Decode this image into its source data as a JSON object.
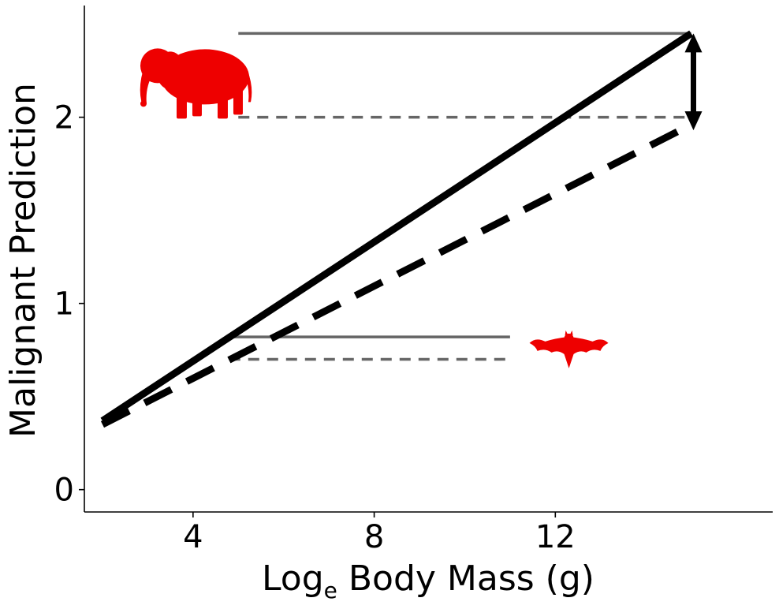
{
  "chart_data": {
    "type": "line",
    "xlabel_main": "Log",
    "xlabel_subscript": "e",
    "xlabel_rest": " Body Mass (g)",
    "ylabel": "Malignant Prediction",
    "xlim": [
      1.6,
      16.8
    ],
    "ylim": [
      -0.12,
      2.6
    ],
    "x_ticks": [
      4,
      8,
      12
    ],
    "y_ticks": [
      0,
      1,
      2
    ],
    "grid": false,
    "series": [
      {
        "style": "solid",
        "color": "#000000",
        "x": [
          2,
          15
        ],
        "y": [
          0.37,
          2.45
        ]
      },
      {
        "style": "dashed",
        "color": "#000000",
        "x": [
          2,
          15
        ],
        "y": [
          0.35,
          1.96
        ]
      }
    ],
    "reference_lines": [
      {
        "style": "solid",
        "color": "#666666",
        "x": [
          5,
          15
        ],
        "y": 2.45
      },
      {
        "style": "dashed",
        "color": "#666666",
        "x": [
          5,
          15
        ],
        "y": 2.0
      },
      {
        "style": "solid",
        "color": "#666666",
        "x": [
          4.8,
          11
        ],
        "y": 0.82
      },
      {
        "style": "dashed",
        "color": "#666666",
        "x": [
          4.8,
          11
        ],
        "y": 0.7
      }
    ],
    "double_arrow": {
      "x": 15.05,
      "y": [
        2.45,
        1.93
      ],
      "color": "#000000"
    },
    "annotations": [
      {
        "icon": "elephant-icon",
        "x": 3.95,
        "y": 2.2,
        "color": "#ee0000"
      },
      {
        "icon": "bat-icon",
        "x": 12.3,
        "y": 0.77,
        "color": "#ee0000"
      }
    ]
  }
}
